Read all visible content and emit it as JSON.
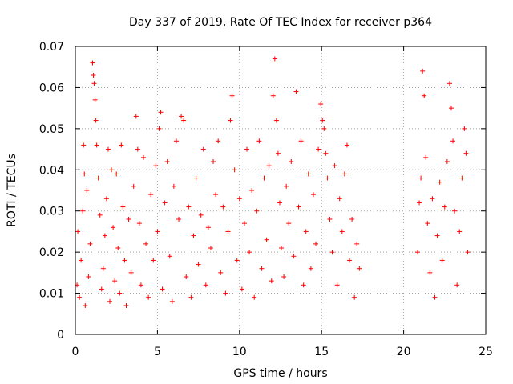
{
  "chart_data": {
    "type": "scatter",
    "title": "Day 337 of 2019, Rate Of TEC Index for receiver p364",
    "xlabel": "GPS time / hours",
    "ylabel": "ROTI / TECUs",
    "xlim": [
      0,
      25
    ],
    "ylim": [
      0,
      0.07
    ],
    "grid": true,
    "marker": "+",
    "marker_color": "#ff0000",
    "x_ticks": [
      0,
      5,
      10,
      15,
      20,
      25
    ],
    "x_tick_labels": [
      "0",
      "5",
      "10",
      "15",
      "20",
      "25"
    ],
    "y_ticks": [
      0,
      0.01,
      0.02,
      0.03,
      0.04,
      0.05,
      0.06,
      0.07
    ],
    "y_tick_labels": [
      "0",
      "0.01",
      "0.02",
      "0.03",
      "0.04",
      "0.05",
      "0.06",
      "0.07"
    ],
    "series": [
      {
        "name": "ROTI",
        "points": [
          [
            0.1,
            0.012
          ],
          [
            0.15,
            0.025
          ],
          [
            0.25,
            0.009
          ],
          [
            0.35,
            0.018
          ],
          [
            0.45,
            0.03
          ],
          [
            0.5,
            0.046
          ],
          [
            0.55,
            0.039
          ],
          [
            0.6,
            0.007
          ],
          [
            0.7,
            0.035
          ],
          [
            0.8,
            0.014
          ],
          [
            0.9,
            0.022
          ],
          [
            1.05,
            0.066
          ],
          [
            1.1,
            0.063
          ],
          [
            1.15,
            0.061
          ],
          [
            1.2,
            0.057
          ],
          [
            1.25,
            0.052
          ],
          [
            1.3,
            0.046
          ],
          [
            1.4,
            0.038
          ],
          [
            1.5,
            0.029
          ],
          [
            1.6,
            0.011
          ],
          [
            1.7,
            0.016
          ],
          [
            1.8,
            0.024
          ],
          [
            1.9,
            0.033
          ],
          [
            2.0,
            0.045
          ],
          [
            2.1,
            0.008
          ],
          [
            2.2,
            0.04
          ],
          [
            2.3,
            0.026
          ],
          [
            2.4,
            0.013
          ],
          [
            2.5,
            0.039
          ],
          [
            2.6,
            0.021
          ],
          [
            2.7,
            0.01
          ],
          [
            2.8,
            0.046
          ],
          [
            2.9,
            0.031
          ],
          [
            3.0,
            0.018
          ],
          [
            3.1,
            0.007
          ],
          [
            3.25,
            0.028
          ],
          [
            3.4,
            0.015
          ],
          [
            3.55,
            0.036
          ],
          [
            3.7,
            0.053
          ],
          [
            3.8,
            0.045
          ],
          [
            3.9,
            0.027
          ],
          [
            4.0,
            0.012
          ],
          [
            4.15,
            0.043
          ],
          [
            4.3,
            0.022
          ],
          [
            4.45,
            0.009
          ],
          [
            4.6,
            0.034
          ],
          [
            4.75,
            0.018
          ],
          [
            4.9,
            0.041
          ],
          [
            5.0,
            0.025
          ],
          [
            5.1,
            0.05
          ],
          [
            5.2,
            0.054
          ],
          [
            5.3,
            0.011
          ],
          [
            5.45,
            0.032
          ],
          [
            5.6,
            0.042
          ],
          [
            5.75,
            0.019
          ],
          [
            5.9,
            0.008
          ],
          [
            6.0,
            0.036
          ],
          [
            6.15,
            0.047
          ],
          [
            6.3,
            0.028
          ],
          [
            6.45,
            0.053
          ],
          [
            6.6,
            0.052
          ],
          [
            6.75,
            0.014
          ],
          [
            6.9,
            0.031
          ],
          [
            7.05,
            0.009
          ],
          [
            7.2,
            0.024
          ],
          [
            7.35,
            0.038
          ],
          [
            7.5,
            0.017
          ],
          [
            7.65,
            0.029
          ],
          [
            7.8,
            0.045
          ],
          [
            7.95,
            0.012
          ],
          [
            8.1,
            0.026
          ],
          [
            8.25,
            0.021
          ],
          [
            8.4,
            0.042
          ],
          [
            8.55,
            0.034
          ],
          [
            8.7,
            0.047
          ],
          [
            8.85,
            0.015
          ],
          [
            9.0,
            0.031
          ],
          [
            9.15,
            0.01
          ],
          [
            9.3,
            0.025
          ],
          [
            9.45,
            0.052
          ],
          [
            9.55,
            0.058
          ],
          [
            9.7,
            0.04
          ],
          [
            9.85,
            0.018
          ],
          [
            10.0,
            0.033
          ],
          [
            10.15,
            0.011
          ],
          [
            10.3,
            0.027
          ],
          [
            10.45,
            0.045
          ],
          [
            10.6,
            0.02
          ],
          [
            10.75,
            0.035
          ],
          [
            10.9,
            0.009
          ],
          [
            11.05,
            0.03
          ],
          [
            11.2,
            0.047
          ],
          [
            11.35,
            0.016
          ],
          [
            11.5,
            0.038
          ],
          [
            11.65,
            0.023
          ],
          [
            11.8,
            0.041
          ],
          [
            11.95,
            0.013
          ],
          [
            12.05,
            0.058
          ],
          [
            12.15,
            0.067
          ],
          [
            12.25,
            0.052
          ],
          [
            12.35,
            0.044
          ],
          [
            12.45,
            0.032
          ],
          [
            12.55,
            0.021
          ],
          [
            12.7,
            0.014
          ],
          [
            12.85,
            0.036
          ],
          [
            13.0,
            0.027
          ],
          [
            13.15,
            0.042
          ],
          [
            13.3,
            0.019
          ],
          [
            13.45,
            0.059
          ],
          [
            13.6,
            0.031
          ],
          [
            13.75,
            0.047
          ],
          [
            13.9,
            0.012
          ],
          [
            14.05,
            0.025
          ],
          [
            14.2,
            0.039
          ],
          [
            14.35,
            0.016
          ],
          [
            14.5,
            0.034
          ],
          [
            14.65,
            0.022
          ],
          [
            14.8,
            0.045
          ],
          [
            14.95,
            0.056
          ],
          [
            15.05,
            0.052
          ],
          [
            15.15,
            0.05
          ],
          [
            15.25,
            0.044
          ],
          [
            15.35,
            0.038
          ],
          [
            15.5,
            0.028
          ],
          [
            15.65,
            0.02
          ],
          [
            15.8,
            0.041
          ],
          [
            15.95,
            0.012
          ],
          [
            16.1,
            0.033
          ],
          [
            16.25,
            0.025
          ],
          [
            16.4,
            0.039
          ],
          [
            16.55,
            0.046
          ],
          [
            16.7,
            0.018
          ],
          [
            16.85,
            0.028
          ],
          [
            17.0,
            0.009
          ],
          [
            17.15,
            0.022
          ],
          [
            17.3,
            0.016
          ],
          [
            20.85,
            0.02
          ],
          [
            20.95,
            0.032
          ],
          [
            21.05,
            0.038
          ],
          [
            21.15,
            0.064
          ],
          [
            21.25,
            0.058
          ],
          [
            21.35,
            0.043
          ],
          [
            21.45,
            0.027
          ],
          [
            21.6,
            0.015
          ],
          [
            21.75,
            0.033
          ],
          [
            21.9,
            0.009
          ],
          [
            22.05,
            0.024
          ],
          [
            22.2,
            0.037
          ],
          [
            22.35,
            0.018
          ],
          [
            22.5,
            0.031
          ],
          [
            22.65,
            0.042
          ],
          [
            22.8,
            0.061
          ],
          [
            22.9,
            0.055
          ],
          [
            23.0,
            0.047
          ],
          [
            23.1,
            0.03
          ],
          [
            23.25,
            0.012
          ],
          [
            23.4,
            0.025
          ],
          [
            23.55,
            0.038
          ],
          [
            23.7,
            0.05
          ],
          [
            23.8,
            0.044
          ],
          [
            23.9,
            0.02
          ]
        ]
      }
    ]
  }
}
